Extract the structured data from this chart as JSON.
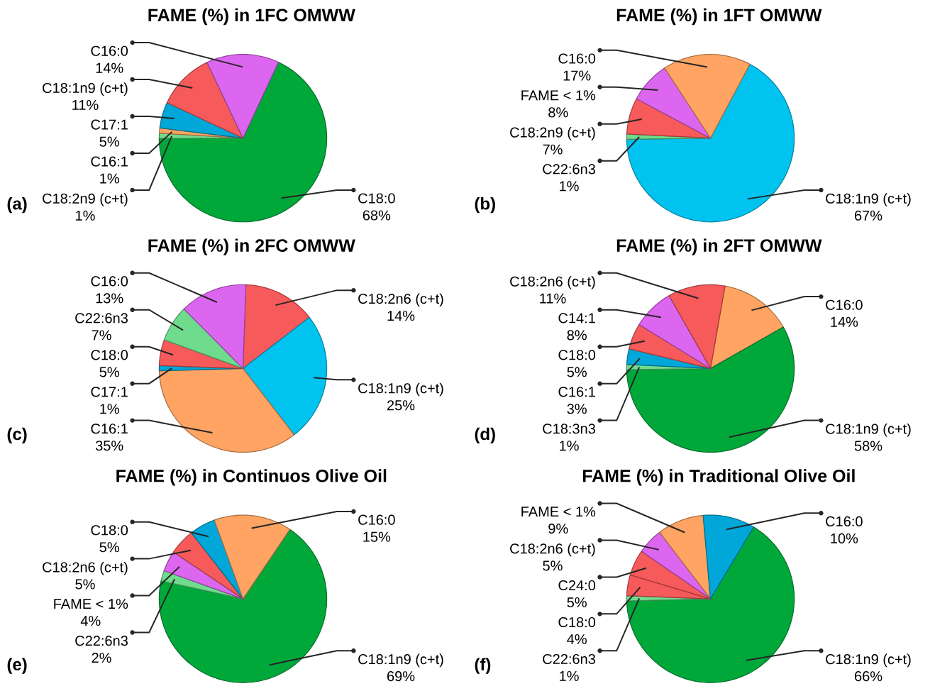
{
  "chart_data": [
    {
      "type": "pie",
      "title": "FAME (%) in 1FC OMWW",
      "annotations": [
        "(a)"
      ],
      "categories": [
        "C18:0",
        "C18:2n9 (c+t)",
        "C16:1",
        "C17:1",
        "C18:1n9 (c+t)",
        "C16:0"
      ],
      "values": [
        68,
        1,
        1,
        5,
        11,
        14
      ],
      "value_labels": [
        "68%",
        "1%",
        "1%",
        "5%",
        "11%",
        "14%"
      ],
      "colors": [
        "#00a83a",
        "#6edc8c",
        "#ffa463",
        "#00a7d8",
        "#f75a5a",
        "#dd66f0"
      ]
    },
    {
      "type": "pie",
      "title": "FAME (%) in 1FT OMWW",
      "annotations": [
        "(b)"
      ],
      "categories": [
        "C18:1n9 (c+t)",
        "C22:6n3",
        "C18:2n9 (c+t)",
        "FAME < 1%",
        "C16:0"
      ],
      "values": [
        67,
        1,
        7,
        8,
        17
      ],
      "value_labels": [
        "67%",
        "1%",
        "7%",
        "8%",
        "17%"
      ],
      "colors": [
        "#00c3f0",
        "#6edc8c",
        "#f75a5a",
        "#dd66f0",
        "#ffa463"
      ]
    },
    {
      "type": "pie",
      "title": "FAME (%) in 2FC OMWW",
      "annotations": [
        "(c)"
      ],
      "categories": [
        "C18:2n6 (c+t)",
        "C18:1n9 (c+t)",
        "C16:1",
        "C17:1",
        "C18:0",
        "C22:6n3",
        "C16:0"
      ],
      "values": [
        14,
        25,
        35,
        1,
        5,
        7,
        13
      ],
      "value_labels": [
        "14%",
        "25%",
        "35%",
        "1%",
        "5%",
        "7%",
        "13%"
      ],
      "colors": [
        "#f75a5a",
        "#00c3f0",
        "#ffa463",
        "#00a7d8",
        "#f75a5a",
        "#6edc8c",
        "#dd66f0"
      ]
    },
    {
      "type": "pie",
      "title": "FAME (%) in 2FT OMWW",
      "annotations": [
        "(d)"
      ],
      "categories": [
        "C16:0",
        "C18:1n9 (c+t)",
        "C18:3n3",
        "C16:1",
        "C18:0",
        "C14:1",
        "C18:2n6 (c+t)"
      ],
      "values": [
        14,
        58,
        1,
        3,
        5,
        8,
        11
      ],
      "value_labels": [
        "14%",
        "58%",
        "1%",
        "3%",
        "5%",
        "8%",
        "11%"
      ],
      "colors": [
        "#ffa463",
        "#00a83a",
        "#6edc8c",
        "#00a7d8",
        "#f75a5a",
        "#dd66f0",
        "#f75a5a"
      ]
    },
    {
      "type": "pie",
      "title": "FAME (%) in Continuos Olive Oil",
      "annotations": [
        "(e)"
      ],
      "categories": [
        "C18:1n9 (c+t)",
        "C22:6n3",
        "FAME < 1%",
        "C18:2n6 (c+t)",
        "C18:0",
        "C16:0"
      ],
      "values": [
        69,
        2,
        4,
        5,
        5,
        15
      ],
      "value_labels": [
        "69%",
        "2%",
        "4%",
        "5%",
        "5%",
        "15%"
      ],
      "colors": [
        "#00a83a",
        "#6edc8c",
        "#dd66f0",
        "#f75a5a",
        "#00a7d8",
        "#ffa463"
      ]
    },
    {
      "type": "pie",
      "title": "FAME (%) in Traditional Olive Oil",
      "annotations": [
        "(f)"
      ],
      "categories": [
        "C18:1n9 (c+t)",
        "C22:6n3",
        "C18:0",
        "C24:0",
        "C18:2n6 (c+t)",
        "FAME < 1%",
        "C16:0"
      ],
      "values": [
        66,
        1,
        4,
        5,
        5,
        9,
        10
      ],
      "value_labels": [
        "66%",
        "1%",
        "4%",
        "5%",
        "5%",
        "9%",
        "10%"
      ],
      "colors": [
        "#00a83a",
        "#6edc8c",
        "#f75a5a",
        "#f75a5a",
        "#dd66f0",
        "#ffa463",
        "#00a7d8"
      ]
    }
  ]
}
